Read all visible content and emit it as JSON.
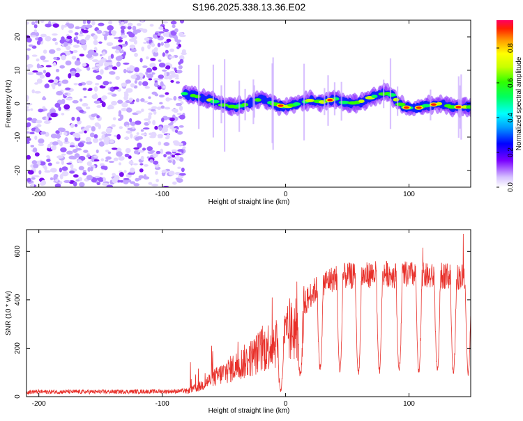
{
  "title": "S196.2025.338.13.36.E02",
  "chart_data": [
    {
      "type": "heatmap",
      "name": "spectrogram",
      "xlabel": "Height of straight line (km)",
      "ylabel": "Frequency (Hz)",
      "xlim": [
        -210,
        150
      ],
      "ylim": [
        -25,
        25
      ],
      "xticks": [
        -200,
        -100,
        0,
        100
      ],
      "xtick_labels": [
        "-200",
        "-100",
        "0",
        "100"
      ],
      "yticks": [
        -20,
        -10,
        0,
        10,
        20
      ],
      "ytick_labels": [
        "-20",
        "-10",
        "0",
        "10",
        "20"
      ],
      "noise_region_km": [
        -210,
        -82
      ],
      "signal_start_km": -82,
      "ridge_frequency_hz": {
        "x": [
          -82,
          -70,
          -60,
          -50,
          -40,
          -30,
          -20,
          -10,
          0,
          10,
          20,
          30,
          40,
          50,
          60,
          70,
          80,
          85,
          95,
          105,
          115,
          125,
          135,
          150
        ],
        "y": [
          3,
          2,
          1,
          -0.5,
          -1,
          0,
          1.5,
          0,
          -1,
          0,
          1,
          0.5,
          1.5,
          0,
          0.5,
          2,
          3,
          3,
          -1,
          -1.5,
          -0.5,
          0,
          -1,
          -1
        ]
      },
      "colorbar": {
        "label": "Normalized spectral amplitude",
        "range": [
          0,
          0.96
        ],
        "ticks": [
          0.0,
          0.2,
          0.4,
          0.6,
          0.8
        ],
        "tick_labels": [
          "0.0",
          "0.2",
          "0.4",
          "0.6",
          "0.8"
        ]
      }
    },
    {
      "type": "line",
      "name": "snr",
      "xlabel": "Height of straight line (km)",
      "ylabel": "SNR (10 * v/v)",
      "xlim": [
        -210,
        150
      ],
      "ylim": [
        0,
        690
      ],
      "xticks": [
        -200,
        -100,
        0,
        100
      ],
      "xtick_labels": [
        "-200",
        "-100",
        "0",
        "100"
      ],
      "yticks": [
        0,
        200,
        400,
        600
      ],
      "ytick_labels": [
        "0",
        "200",
        "400",
        "600"
      ],
      "color": "#e8302a",
      "envelope": {
        "x": [
          -210,
          -150,
          -90,
          -80,
          -70,
          -60,
          -50,
          -40,
          -30,
          -20,
          -10,
          0,
          10,
          20,
          30,
          40,
          50,
          60,
          70,
          80,
          90,
          100,
          110,
          120,
          130,
          140,
          150
        ],
        "y": [
          20,
          20,
          22,
          25,
          45,
          80,
          110,
          140,
          170,
          210,
          250,
          270,
          330,
          420,
          470,
          490,
          500,
          495,
          505,
          510,
          500,
          505,
          500,
          495,
          500,
          495,
          500
        ]
      },
      "dropouts": {
        "x": [
          -4,
          12,
          28,
          44,
          59,
          76,
          92,
          108,
          123,
          136,
          148
        ],
        "y": [
          30,
          90,
          120,
          110,
          100,
          105,
          110,
          100,
          110,
          100,
          100
        ]
      }
    }
  ]
}
